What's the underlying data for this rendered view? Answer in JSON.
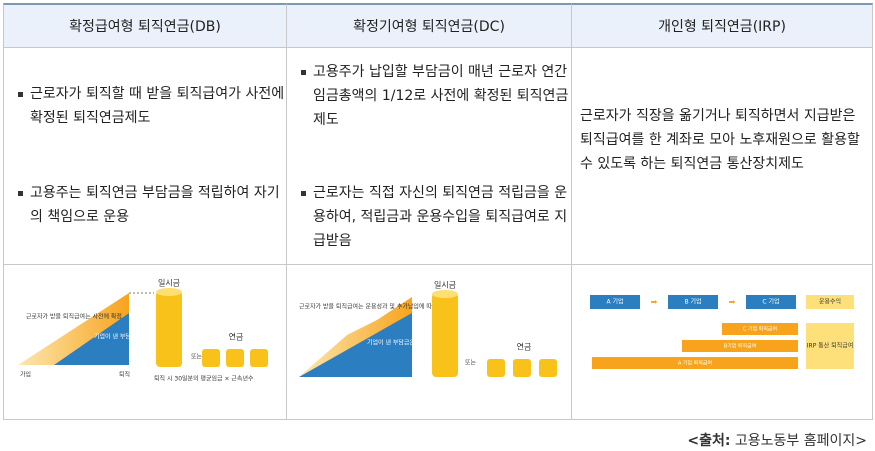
{
  "header": {
    "columns": [
      "확정급여형 퇴직연금(DB)",
      "확정기여형 퇴직연금(DC)",
      "개인형 퇴직연금(IRP)"
    ]
  },
  "descriptions": [
    {
      "bullets": [
        "근로자가 퇴직할 때 받을 퇴직급여가 사전에 확정된 퇴직연금제도",
        "고용주는 퇴직연금 부담금을 적립하여 자기의 책임으로 운용"
      ]
    },
    {
      "bullets": [
        "고용주가 납입할 부담금이 매년 근로자 연간 임금총액의 1/12로 사전에 확정된 퇴직연금제도",
        "근로자는 직접 자신의 퇴직연금 적립금을 운용하여, 적립금과 운용수입을 퇴직급여로 지급받음"
      ]
    },
    {
      "text": "근로자가 직장을 옮기거나 퇴직하면서 지급받은 퇴직급여를 한 계좌로 모아 노후재원으로 활용할 수 있도록 하는 퇴직연금 통산장치제도"
    }
  ],
  "diagrams": [
    {
      "upper_note": "근로자가 받을 퇴직급여는 사전에 확정",
      "lower_note": "기업이 낸 부담금은 운용실적에 따라 변동",
      "lump_sum": "일시금",
      "or": "또는",
      "annuity": "연금",
      "start": "가입",
      "end": "퇴직",
      "formula": "퇴직 시 30일분의 평균임금 × 근속년수"
    },
    {
      "upper_note": "근로자가 받을 퇴직급여는 운용성과 및 추가납입에 따라 변동",
      "lower_note": "기업이 낸 부담금은 임금총액의 1/12 확정",
      "lump_sum": "일시금",
      "or": "또는",
      "annuity": "연금"
    },
    {
      "companies": [
        "A 기업",
        "B 기업",
        "C 기업"
      ],
      "return": "운용수익",
      "benefits": [
        "C 기업 퇴직급여",
        "B기업 퇴직급여",
        "A 기업 퇴직급여"
      ],
      "irp": "IRP 통산 퇴직급여"
    }
  ],
  "source": {
    "label": "<출처:",
    "text": "고용노동부 홈페이지>"
  }
}
